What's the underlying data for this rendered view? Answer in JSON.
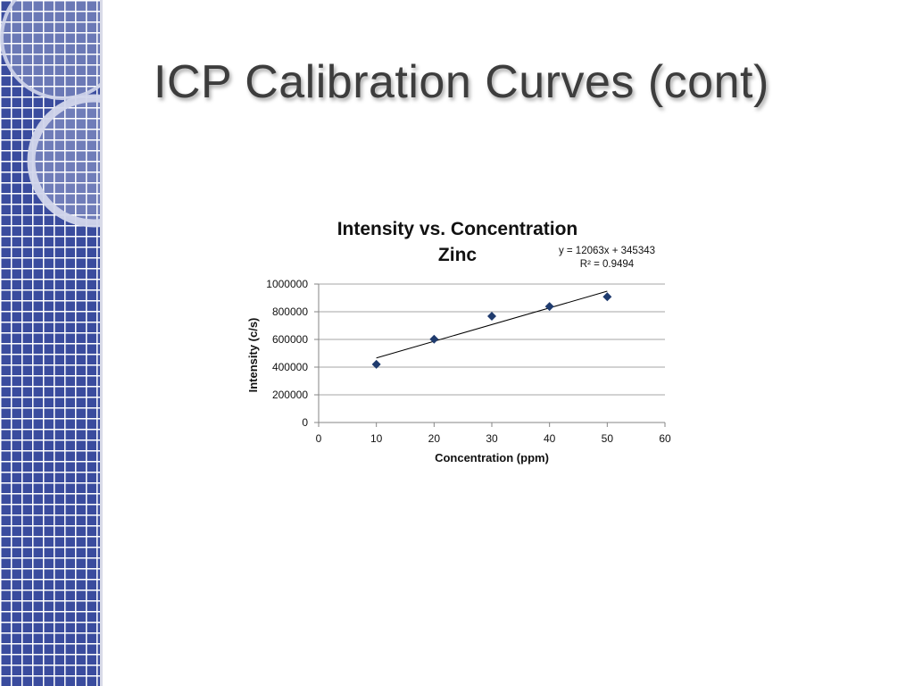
{
  "slide": {
    "title": "ICP Calibration Curves (cont)"
  },
  "chart_data": {
    "type": "scatter",
    "title": "Intensity vs. Concentration",
    "subtitle": "Zinc",
    "xlabel": "Concentration (ppm)",
    "ylabel": "Intensity (c/s)",
    "xlim": [
      0,
      60
    ],
    "ylim": [
      0,
      1000000
    ],
    "x_ticks": [
      0,
      10,
      20,
      30,
      40,
      50,
      60
    ],
    "y_ticks": [
      0,
      200000,
      400000,
      600000,
      800000,
      1000000
    ],
    "grid": "horizontal",
    "series": [
      {
        "x": [
          10,
          20,
          30,
          40,
          50
        ],
        "values": [
          420000,
          602000,
          768000,
          838000,
          908000
        ]
      }
    ],
    "trendline": {
      "slope": 12063,
      "intercept": 345343,
      "x_range": [
        10,
        50
      ],
      "equation": "y = 12063x + 345343",
      "r_squared": "R² = 0.9494"
    },
    "colors": {
      "marker": "#1f3b6e",
      "trendline": "#000000",
      "grid": "#a6a6a6"
    }
  }
}
